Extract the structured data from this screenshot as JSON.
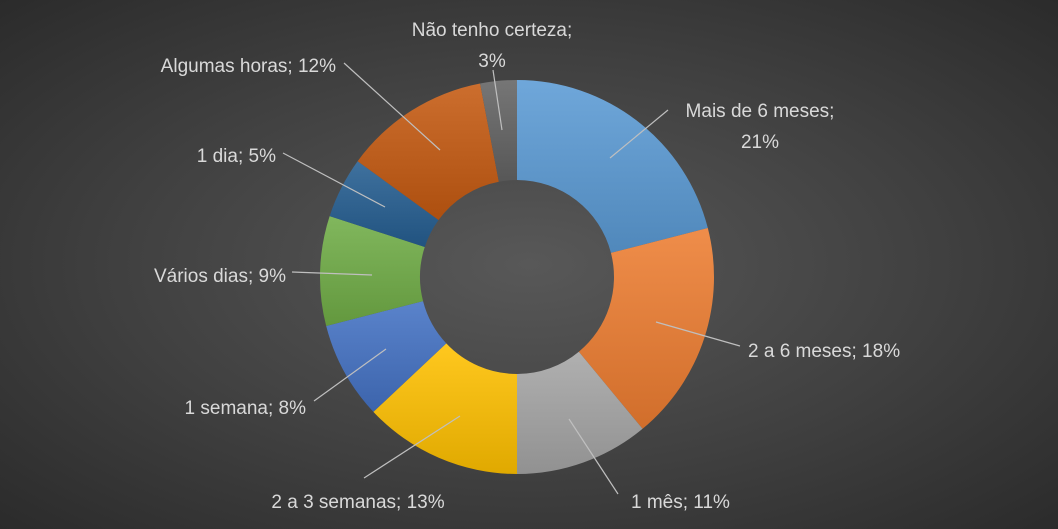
{
  "chart_data": {
    "type": "pie",
    "title": "",
    "donut": true,
    "legend": "none",
    "slices": [
      {
        "name": "Mais de 6 meses",
        "value": 21,
        "label_lines": [
          "Mais de 6 meses;",
          "21%"
        ],
        "color": "#5b9bd5"
      },
      {
        "name": "2 a 6 meses",
        "value": 18,
        "label_lines": [
          "2 a 6 meses; 18%"
        ],
        "color": "#ed7d31"
      },
      {
        "name": "1 mês",
        "value": 11,
        "label_lines": [
          "1 mês; 11%"
        ],
        "color": "#a5a5a5"
      },
      {
        "name": "2 a 3 semanas",
        "value": 13,
        "label_lines": [
          "2 a 3 semanas; 13%"
        ],
        "color": "#ffc000"
      },
      {
        "name": "1 semana",
        "value": 8,
        "label_lines": [
          "1 semana; 8%"
        ],
        "color": "#4472c4"
      },
      {
        "name": "Vários dias",
        "value": 9,
        "label_lines": [
          "Vários dias; 9%"
        ],
        "color": "#70ad47"
      },
      {
        "name": "1 dia",
        "value": 5,
        "label_lines": [
          "1 dia; 5%"
        ],
        "color": "#255e91"
      },
      {
        "name": "Algumas horas",
        "value": 12,
        "label_lines": [
          "Algumas horas; 12%"
        ],
        "color": "#c55a11"
      },
      {
        "name": "Não tenho certeza",
        "value": 3,
        "label_lines": [
          "Não tenho certeza;",
          "3%"
        ],
        "color": "#636363"
      }
    ]
  }
}
